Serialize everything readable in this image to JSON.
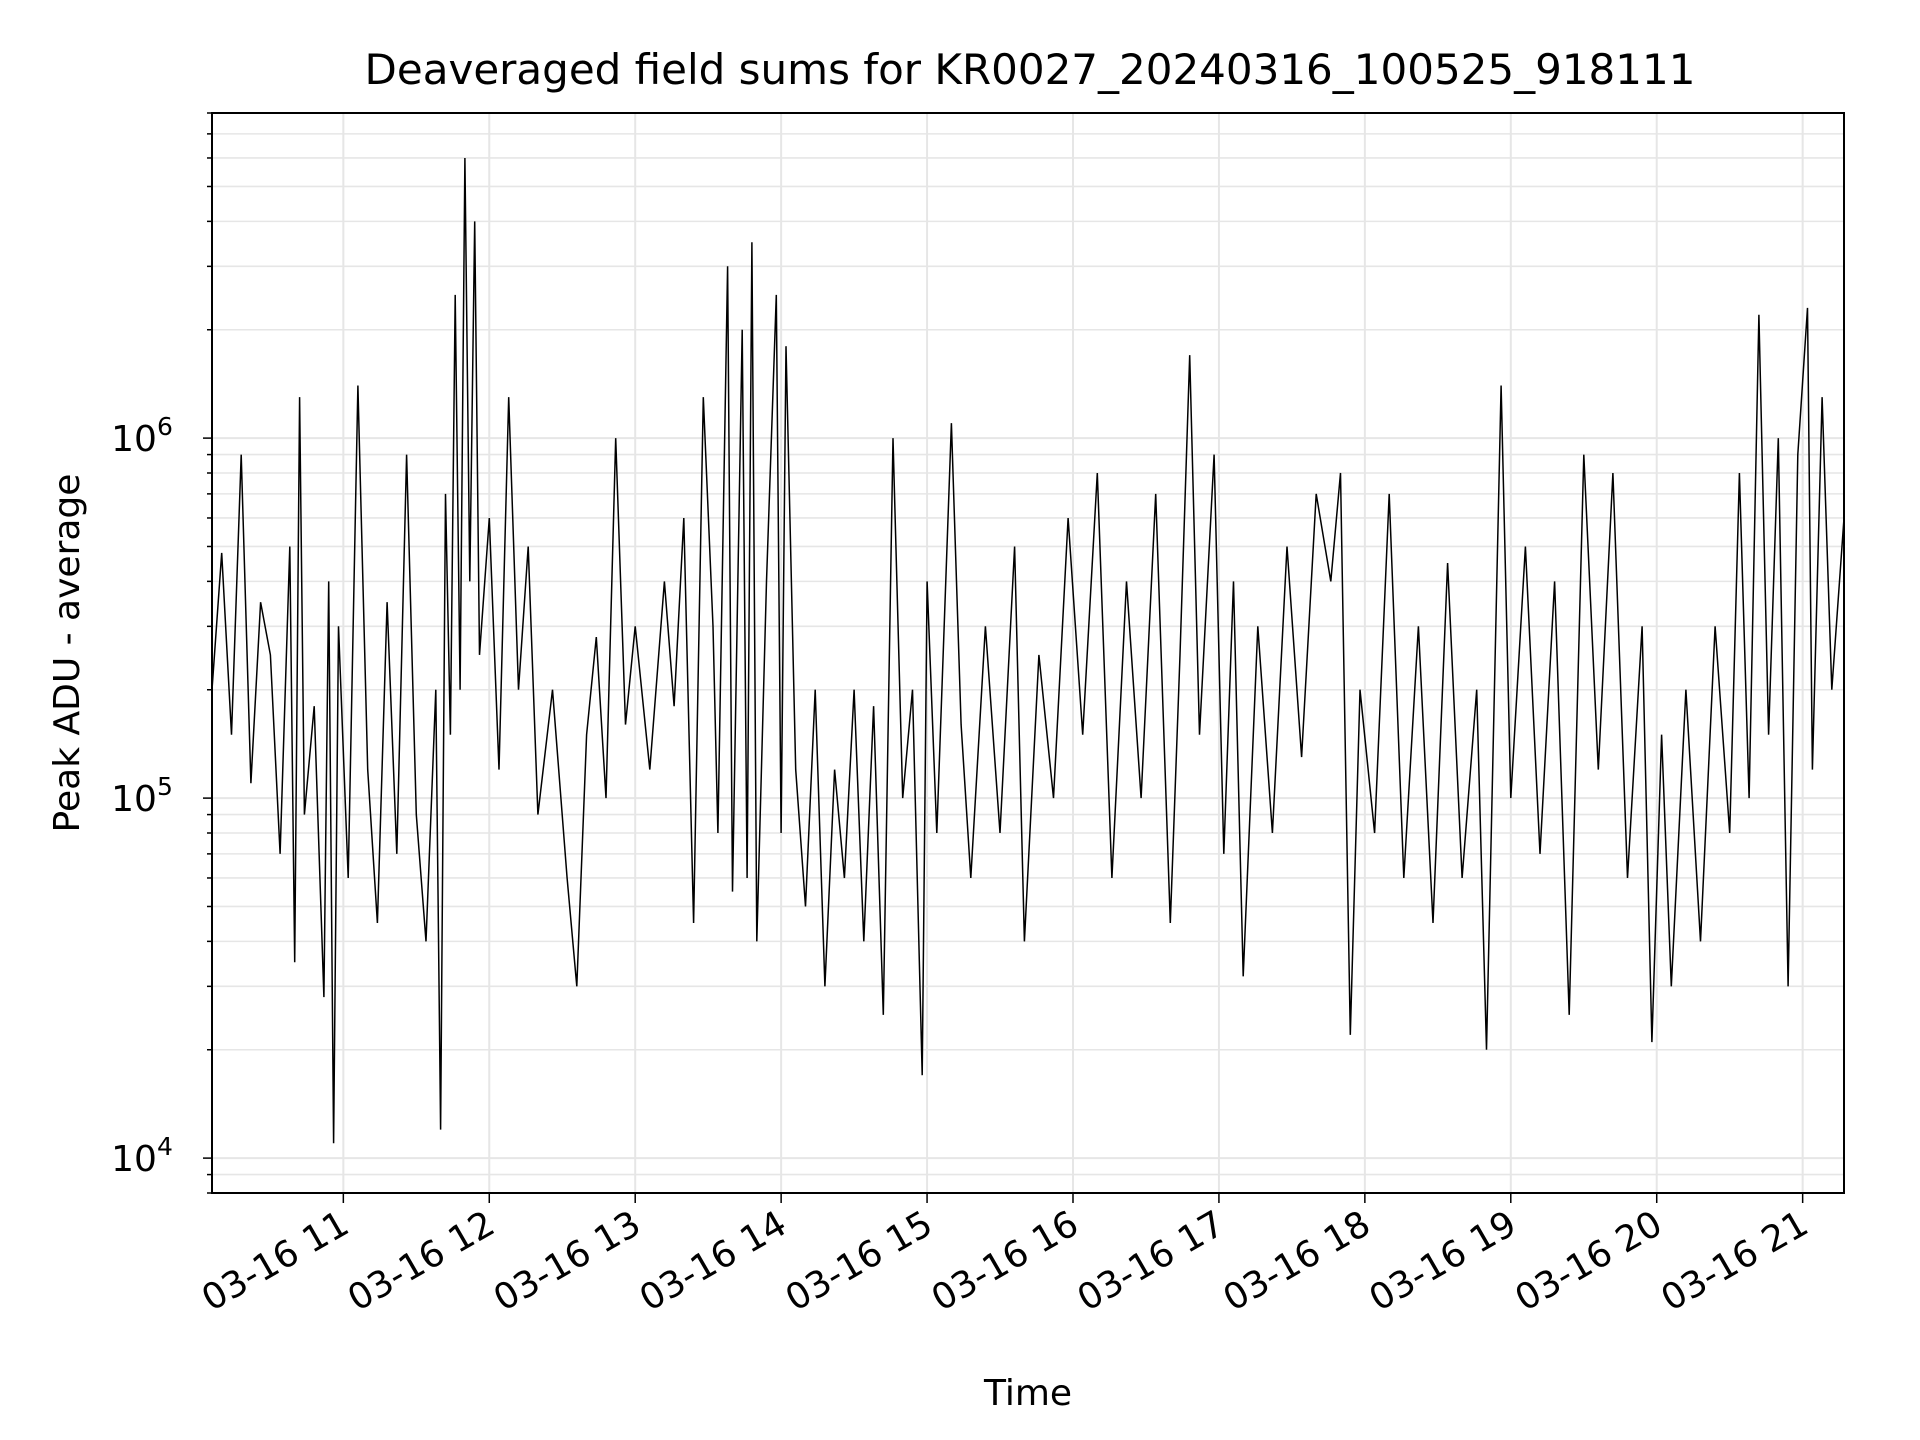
{
  "chart_data": {
    "type": "line",
    "title": "Deaveraged field sums for KR0027_20240316_100525_918111",
    "xlabel": "Time",
    "ylabel": "Peak ADU - average",
    "yscale": "log",
    "xlim": [
      "2024-03-16 10:06",
      "2024-03-16 21:17"
    ],
    "ylim": [
      8000,
      8000000
    ],
    "grid": true,
    "legend": "none",
    "line_color": "#000000",
    "grid_color": "#e6e6e6",
    "x_ticks": [
      "03-16 11",
      "03-16 12",
      "03-16 13",
      "03-16 14",
      "03-16 15",
      "03-16 16",
      "03-16 17",
      "03-16 18",
      "03-16 19",
      "03-16 20",
      "03-16 21"
    ],
    "y_ticks": [
      {
        "base": "10",
        "exp": "4",
        "value": 10000
      },
      {
        "base": "10",
        "exp": "5",
        "value": 100000
      },
      {
        "base": "10",
        "exp": "6",
        "value": 1000000
      }
    ],
    "series": [
      {
        "values": [
          [
            "2024-03-16 10:06",
            200000
          ],
          [
            "2024-03-16 10:10",
            480000
          ],
          [
            "2024-03-16 10:14",
            150000
          ],
          [
            "2024-03-16 10:18",
            900000
          ],
          [
            "2024-03-16 10:22",
            110000
          ],
          [
            "2024-03-16 10:26",
            350000
          ],
          [
            "2024-03-16 10:30",
            250000
          ],
          [
            "2024-03-16 10:34",
            70000
          ],
          [
            "2024-03-16 10:38",
            500000
          ],
          [
            "2024-03-16 10:40",
            35000
          ],
          [
            "2024-03-16 10:42",
            1300000
          ],
          [
            "2024-03-16 10:44",
            90000
          ],
          [
            "2024-03-16 10:48",
            180000
          ],
          [
            "2024-03-16 10:52",
            28000
          ],
          [
            "2024-03-16 10:54",
            400000
          ],
          [
            "2024-03-16 10:56",
            11000
          ],
          [
            "2024-03-16 10:58",
            300000
          ],
          [
            "2024-03-16 11:02",
            60000
          ],
          [
            "2024-03-16 11:06",
            1400000
          ],
          [
            "2024-03-16 11:10",
            120000
          ],
          [
            "2024-03-16 11:14",
            45000
          ],
          [
            "2024-03-16 11:18",
            350000
          ],
          [
            "2024-03-16 11:22",
            70000
          ],
          [
            "2024-03-16 11:26",
            900000
          ],
          [
            "2024-03-16 11:30",
            90000
          ],
          [
            "2024-03-16 11:34",
            40000
          ],
          [
            "2024-03-16 11:38",
            200000
          ],
          [
            "2024-03-16 11:40",
            12000
          ],
          [
            "2024-03-16 11:42",
            700000
          ],
          [
            "2024-03-16 11:44",
            150000
          ],
          [
            "2024-03-16 11:46",
            2500000
          ],
          [
            "2024-03-16 11:48",
            200000
          ],
          [
            "2024-03-16 11:50",
            6000000
          ],
          [
            "2024-03-16 11:52",
            400000
          ],
          [
            "2024-03-16 11:54",
            4000000
          ],
          [
            "2024-03-16 11:56",
            250000
          ],
          [
            "2024-03-16 12:00",
            600000
          ],
          [
            "2024-03-16 12:04",
            120000
          ],
          [
            "2024-03-16 12:08",
            1300000
          ],
          [
            "2024-03-16 12:12",
            200000
          ],
          [
            "2024-03-16 12:16",
            500000
          ],
          [
            "2024-03-16 12:20",
            90000
          ],
          [
            "2024-03-16 12:26",
            200000
          ],
          [
            "2024-03-16 12:32",
            60000
          ],
          [
            "2024-03-16 12:36",
            30000
          ],
          [
            "2024-03-16 12:40",
            150000
          ],
          [
            "2024-03-16 12:44",
            280000
          ],
          [
            "2024-03-16 12:48",
            100000
          ],
          [
            "2024-03-16 12:52",
            1000000
          ],
          [
            "2024-03-16 12:56",
            160000
          ],
          [
            "2024-03-16 13:00",
            300000
          ],
          [
            "2024-03-16 13:06",
            120000
          ],
          [
            "2024-03-16 13:12",
            400000
          ],
          [
            "2024-03-16 13:16",
            180000
          ],
          [
            "2024-03-16 13:20",
            600000
          ],
          [
            "2024-03-16 13:24",
            45000
          ],
          [
            "2024-03-16 13:28",
            1300000
          ],
          [
            "2024-03-16 13:32",
            300000
          ],
          [
            "2024-03-16 13:34",
            80000
          ],
          [
            "2024-03-16 13:38",
            3000000
          ],
          [
            "2024-03-16 13:40",
            55000
          ],
          [
            "2024-03-16 13:44",
            2000000
          ],
          [
            "2024-03-16 13:46",
            60000
          ],
          [
            "2024-03-16 13:48",
            3500000
          ],
          [
            "2024-03-16 13:50",
            40000
          ],
          [
            "2024-03-16 13:54",
            400000
          ],
          [
            "2024-03-16 13:58",
            2500000
          ],
          [
            "2024-03-16 14:00",
            80000
          ],
          [
            "2024-03-16 14:02",
            1800000
          ],
          [
            "2024-03-16 14:06",
            120000
          ],
          [
            "2024-03-16 14:10",
            50000
          ],
          [
            "2024-03-16 14:14",
            200000
          ],
          [
            "2024-03-16 14:18",
            30000
          ],
          [
            "2024-03-16 14:22",
            120000
          ],
          [
            "2024-03-16 14:26",
            60000
          ],
          [
            "2024-03-16 14:30",
            200000
          ],
          [
            "2024-03-16 14:34",
            40000
          ],
          [
            "2024-03-16 14:38",
            180000
          ],
          [
            "2024-03-16 14:42",
            25000
          ],
          [
            "2024-03-16 14:46",
            1000000
          ],
          [
            "2024-03-16 14:50",
            100000
          ],
          [
            "2024-03-16 14:54",
            200000
          ],
          [
            "2024-03-16 14:58",
            17000
          ],
          [
            "2024-03-16 15:00",
            400000
          ],
          [
            "2024-03-16 15:04",
            80000
          ],
          [
            "2024-03-16 15:10",
            1100000
          ],
          [
            "2024-03-16 15:14",
            160000
          ],
          [
            "2024-03-16 15:18",
            60000
          ],
          [
            "2024-03-16 15:24",
            300000
          ],
          [
            "2024-03-16 15:30",
            80000
          ],
          [
            "2024-03-16 15:36",
            500000
          ],
          [
            "2024-03-16 15:40",
            40000
          ],
          [
            "2024-03-16 15:46",
            250000
          ],
          [
            "2024-03-16 15:52",
            100000
          ],
          [
            "2024-03-16 15:58",
            600000
          ],
          [
            "2024-03-16 16:04",
            150000
          ],
          [
            "2024-03-16 16:10",
            800000
          ],
          [
            "2024-03-16 16:16",
            60000
          ],
          [
            "2024-03-16 16:22",
            400000
          ],
          [
            "2024-03-16 16:28",
            100000
          ],
          [
            "2024-03-16 16:34",
            700000
          ],
          [
            "2024-03-16 16:40",
            45000
          ],
          [
            "2024-03-16 16:44",
            250000
          ],
          [
            "2024-03-16 16:48",
            1700000
          ],
          [
            "2024-03-16 16:52",
            150000
          ],
          [
            "2024-03-16 16:58",
            900000
          ],
          [
            "2024-03-16 17:02",
            70000
          ],
          [
            "2024-03-16 17:06",
            400000
          ],
          [
            "2024-03-16 17:10",
            32000
          ],
          [
            "2024-03-16 17:16",
            300000
          ],
          [
            "2024-03-16 17:22",
            80000
          ],
          [
            "2024-03-16 17:28",
            500000
          ],
          [
            "2024-03-16 17:34",
            130000
          ],
          [
            "2024-03-16 17:40",
            700000
          ],
          [
            "2024-03-16 17:46",
            400000
          ],
          [
            "2024-03-16 17:50",
            800000
          ],
          [
            "2024-03-16 17:54",
            22000
          ],
          [
            "2024-03-16 17:58",
            200000
          ],
          [
            "2024-03-16 18:04",
            80000
          ],
          [
            "2024-03-16 18:10",
            700000
          ],
          [
            "2024-03-16 18:16",
            60000
          ],
          [
            "2024-03-16 18:22",
            300000
          ],
          [
            "2024-03-16 18:28",
            45000
          ],
          [
            "2024-03-16 18:34",
            450000
          ],
          [
            "2024-03-16 18:40",
            60000
          ],
          [
            "2024-03-16 18:46",
            200000
          ],
          [
            "2024-03-16 18:50",
            20000
          ],
          [
            "2024-03-16 18:56",
            1400000
          ],
          [
            "2024-03-16 19:00",
            100000
          ],
          [
            "2024-03-16 19:06",
            500000
          ],
          [
            "2024-03-16 19:12",
            70000
          ],
          [
            "2024-03-16 19:18",
            400000
          ],
          [
            "2024-03-16 19:24",
            25000
          ],
          [
            "2024-03-16 19:30",
            900000
          ],
          [
            "2024-03-16 19:36",
            120000
          ],
          [
            "2024-03-16 19:42",
            800000
          ],
          [
            "2024-03-16 19:48",
            60000
          ],
          [
            "2024-03-16 19:54",
            300000
          ],
          [
            "2024-03-16 19:58",
            21000
          ],
          [
            "2024-03-16 20:02",
            150000
          ],
          [
            "2024-03-16 20:06",
            30000
          ],
          [
            "2024-03-16 20:12",
            200000
          ],
          [
            "2024-03-16 20:18",
            40000
          ],
          [
            "2024-03-16 20:24",
            300000
          ],
          [
            "2024-03-16 20:30",
            80000
          ],
          [
            "2024-03-16 20:34",
            800000
          ],
          [
            "2024-03-16 20:38",
            100000
          ],
          [
            "2024-03-16 20:42",
            2200000
          ],
          [
            "2024-03-16 20:46",
            150000
          ],
          [
            "2024-03-16 20:50",
            1000000
          ],
          [
            "2024-03-16 20:54",
            30000
          ],
          [
            "2024-03-16 20:58",
            900000
          ],
          [
            "2024-03-16 21:02",
            2300000
          ],
          [
            "2024-03-16 21:04",
            120000
          ],
          [
            "2024-03-16 21:08",
            1300000
          ],
          [
            "2024-03-16 21:12",
            200000
          ],
          [
            "2024-03-16 21:17",
            600000
          ]
        ]
      }
    ]
  }
}
